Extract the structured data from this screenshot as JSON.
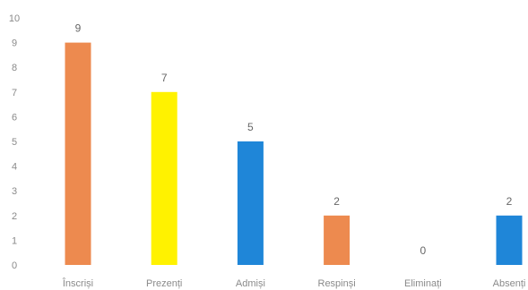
{
  "chart_data": {
    "type": "bar",
    "categories": [
      "Înscriși",
      "Prezenți",
      "Admiși",
      "Respinși",
      "Eliminați",
      "Absenți"
    ],
    "values": [
      9,
      7,
      5,
      2,
      0,
      2
    ],
    "colors": [
      "#ED8A4F",
      "#FFF200",
      "#1F86D8",
      "#ED8A4F",
      "#A0A0A0",
      "#1F86D8"
    ],
    "ylim": [
      0,
      10
    ],
    "yticks": [
      "0",
      "1",
      "2",
      "3",
      "4",
      "5",
      "6",
      "7",
      "8",
      "9",
      "10"
    ],
    "data_labels": [
      "9",
      "7",
      "5",
      "2",
      "0",
      "2"
    ],
    "grid": false,
    "legend": "none"
  }
}
